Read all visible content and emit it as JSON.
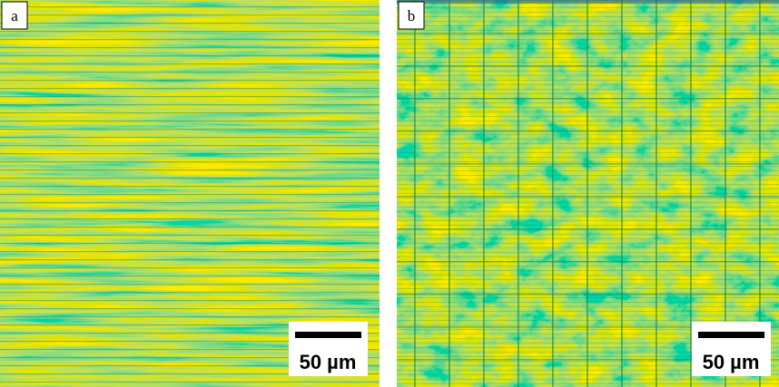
{
  "panels": [
    {
      "label": "a",
      "scale_bar": "50 µm"
    },
    {
      "label": "b",
      "scale_bar": "50 µm"
    }
  ]
}
